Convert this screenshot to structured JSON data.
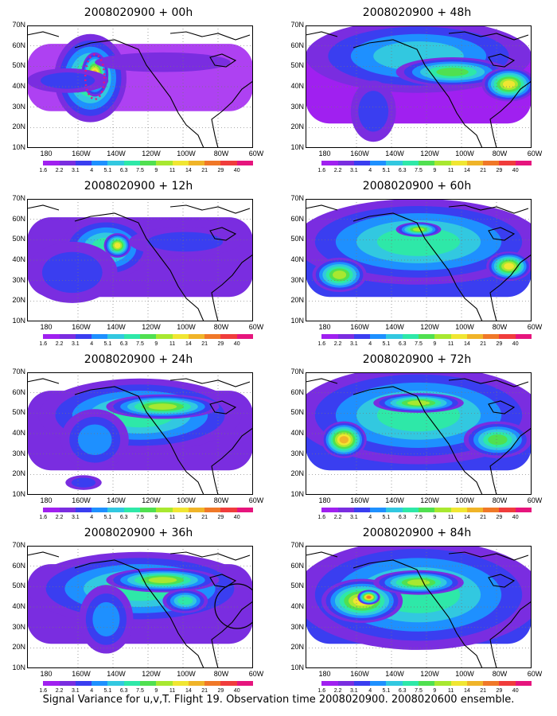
{
  "colorbar": {
    "labels": [
      "1.6",
      "2.2",
      "3.1",
      "4",
      "5.1",
      "6.3",
      "7.5",
      "9",
      "11",
      "14",
      "21",
      "29",
      "40"
    ],
    "colors": [
      "#ffffff",
      "#a020f0",
      "#7a2de0",
      "#3a3ef0",
      "#1e90ff",
      "#32c8e0",
      "#2ee8a8",
      "#50e050",
      "#a8e830",
      "#f0e632",
      "#f0b428",
      "#f07828",
      "#f03c3c",
      "#e6157d"
    ]
  },
  "y_labels": [
    "70N",
    "60N",
    "50N",
    "40N",
    "30N",
    "20N",
    "10N"
  ],
  "x_labels": [
    "180",
    "160W",
    "140W",
    "120W",
    "100W",
    "80W",
    "60W"
  ],
  "panels": [
    {
      "title": "2008020900 + 00h",
      "col": 0,
      "row": 0
    },
    {
      "title": "2008020900 + 48h",
      "col": 1,
      "row": 0
    },
    {
      "title": "2008020900 + 12h",
      "col": 0,
      "row": 1
    },
    {
      "title": "2008020900 + 60h",
      "col": 1,
      "row": 1
    },
    {
      "title": "2008020900 + 24h",
      "col": 0,
      "row": 2
    },
    {
      "title": "2008020900 + 72h",
      "col": 1,
      "row": 2
    },
    {
      "title": "2008020900 + 36h",
      "col": 0,
      "row": 3
    },
    {
      "title": "2008020900 + 84h",
      "col": 1,
      "row": 3
    }
  ],
  "caption": "Signal Variance for u,v,T. Flight 19. Observation time 2008020900. 2008020600 ensemble."
}
